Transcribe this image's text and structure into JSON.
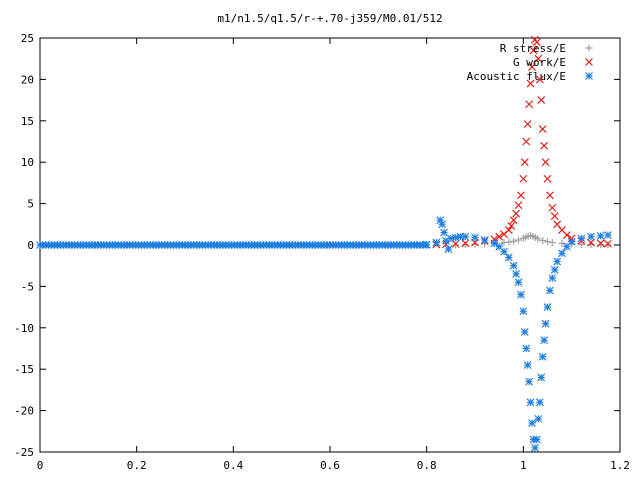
{
  "chart_data": {
    "type": "scatter",
    "title": "m1/n1.5/q1.5/r-+.70-j359/M0.01/512",
    "xlabel": "",
    "ylabel": "",
    "xlim": [
      0,
      1.2
    ],
    "ylim": [
      -25,
      25
    ],
    "x_ticks": [
      "0",
      "0.2",
      "0.4",
      "0.6",
      "0.8",
      "1",
      "1.2"
    ],
    "y_ticks": [
      "25",
      "20",
      "15",
      "10",
      "5",
      "0",
      "-5",
      "-10",
      "-15",
      "-20",
      "-25"
    ],
    "grid": false,
    "legend_position": "top-right",
    "series": [
      {
        "name": "R stress/E",
        "marker": "plus",
        "color": "#a0a0a0",
        "points": [
          [
            0.86,
            0.0
          ],
          [
            0.88,
            0.05
          ],
          [
            0.9,
            0.1
          ],
          [
            0.92,
            0.15
          ],
          [
            0.94,
            0.2
          ],
          [
            0.96,
            0.3
          ],
          [
            0.97,
            0.35
          ],
          [
            0.98,
            0.45
          ],
          [
            0.99,
            0.6
          ],
          [
            1.0,
            0.8
          ],
          [
            1.005,
            0.95
          ],
          [
            1.01,
            1.05
          ],
          [
            1.015,
            1.15
          ],
          [
            1.02,
            1.05
          ],
          [
            1.025,
            0.9
          ],
          [
            1.03,
            0.75
          ],
          [
            1.04,
            0.55
          ],
          [
            1.05,
            0.4
          ],
          [
            1.06,
            0.3
          ],
          [
            1.08,
            0.2
          ],
          [
            1.1,
            0.12
          ],
          [
            1.12,
            0.08
          ],
          [
            1.14,
            0.05
          ],
          [
            1.16,
            0.03
          ],
          [
            1.175,
            0.02
          ]
        ]
      },
      {
        "name": "G work/E",
        "marker": "cross",
        "color": "#e0201b",
        "points": [
          [
            0.82,
            0.05
          ],
          [
            0.84,
            0.08
          ],
          [
            0.86,
            0.12
          ],
          [
            0.88,
            0.2
          ],
          [
            0.9,
            0.3
          ],
          [
            0.92,
            0.5
          ],
          [
            0.94,
            0.7
          ],
          [
            0.95,
            1.0
          ],
          [
            0.96,
            1.3
          ],
          [
            0.97,
            1.8
          ],
          [
            0.975,
            2.3
          ],
          [
            0.98,
            3.0
          ],
          [
            0.985,
            3.8
          ],
          [
            0.99,
            4.8
          ],
          [
            0.995,
            6.0
          ],
          [
            1.0,
            8.0
          ],
          [
            1.003,
            10.0
          ],
          [
            1.006,
            12.5
          ],
          [
            1.009,
            14.6
          ],
          [
            1.012,
            17.0
          ],
          [
            1.015,
            19.5
          ],
          [
            1.018,
            21.5
          ],
          [
            1.021,
            23.5
          ],
          [
            1.024,
            24.8
          ],
          [
            1.028,
            24.5
          ],
          [
            1.031,
            22.5
          ],
          [
            1.034,
            20.0
          ],
          [
            1.037,
            17.5
          ],
          [
            1.04,
            14.0
          ],
          [
            1.043,
            12.0
          ],
          [
            1.046,
            10.0
          ],
          [
            1.05,
            8.0
          ],
          [
            1.055,
            6.0
          ],
          [
            1.06,
            4.5
          ],
          [
            1.065,
            3.5
          ],
          [
            1.07,
            2.5
          ],
          [
            1.08,
            1.8
          ],
          [
            1.09,
            1.2
          ],
          [
            1.1,
            0.8
          ],
          [
            1.12,
            0.5
          ],
          [
            1.14,
            0.3
          ],
          [
            1.16,
            0.2
          ],
          [
            1.175,
            0.15
          ]
        ]
      },
      {
        "name": "Acoustic flux/E",
        "marker": "star",
        "color": "#1f7fe0",
        "points": [
          [
            0.0,
            0.0
          ],
          [
            0.05,
            0.0
          ],
          [
            0.1,
            0.0
          ],
          [
            0.15,
            0.0
          ],
          [
            0.2,
            0.0
          ],
          [
            0.25,
            0.0
          ],
          [
            0.3,
            0.0
          ],
          [
            0.35,
            0.0
          ],
          [
            0.4,
            0.0
          ],
          [
            0.45,
            0.0
          ],
          [
            0.5,
            0.0
          ],
          [
            0.55,
            0.0
          ],
          [
            0.6,
            0.0
          ],
          [
            0.65,
            0.0
          ],
          [
            0.7,
            0.0
          ],
          [
            0.75,
            0.0
          ],
          [
            0.8,
            0.05
          ],
          [
            0.82,
            0.3
          ],
          [
            0.828,
            3.0
          ],
          [
            0.832,
            2.5
          ],
          [
            0.836,
            1.5
          ],
          [
            0.84,
            0.5
          ],
          [
            0.845,
            -0.5
          ],
          [
            0.85,
            0.8
          ],
          [
            0.86,
            0.9
          ],
          [
            0.87,
            1.0
          ],
          [
            0.88,
            1.0
          ],
          [
            0.9,
            0.9
          ],
          [
            0.92,
            0.6
          ],
          [
            0.94,
            0.2
          ],
          [
            0.95,
            -0.2
          ],
          [
            0.96,
            -0.8
          ],
          [
            0.97,
            -1.5
          ],
          [
            0.98,
            -2.5
          ],
          [
            0.985,
            -3.5
          ],
          [
            0.99,
            -4.5
          ],
          [
            0.995,
            -6.0
          ],
          [
            1.0,
            -8.0
          ],
          [
            1.003,
            -10.5
          ],
          [
            1.006,
            -12.5
          ],
          [
            1.009,
            -14.5
          ],
          [
            1.012,
            -16.5
          ],
          [
            1.015,
            -19.0
          ],
          [
            1.018,
            -21.5
          ],
          [
            1.021,
            -23.5
          ],
          [
            1.024,
            -24.5
          ],
          [
            1.028,
            -23.5
          ],
          [
            1.031,
            -21.0
          ],
          [
            1.034,
            -19.0
          ],
          [
            1.037,
            -16.0
          ],
          [
            1.04,
            -13.5
          ],
          [
            1.043,
            -11.5
          ],
          [
            1.046,
            -9.5
          ],
          [
            1.05,
            -7.5
          ],
          [
            1.055,
            -5.5
          ],
          [
            1.06,
            -4.0
          ],
          [
            1.065,
            -3.0
          ],
          [
            1.07,
            -2.0
          ],
          [
            1.08,
            -1.0
          ],
          [
            1.09,
            -0.2
          ],
          [
            1.1,
            0.4
          ],
          [
            1.12,
            0.8
          ],
          [
            1.14,
            1.0
          ],
          [
            1.16,
            1.1
          ],
          [
            1.175,
            1.2
          ]
        ]
      }
    ]
  }
}
